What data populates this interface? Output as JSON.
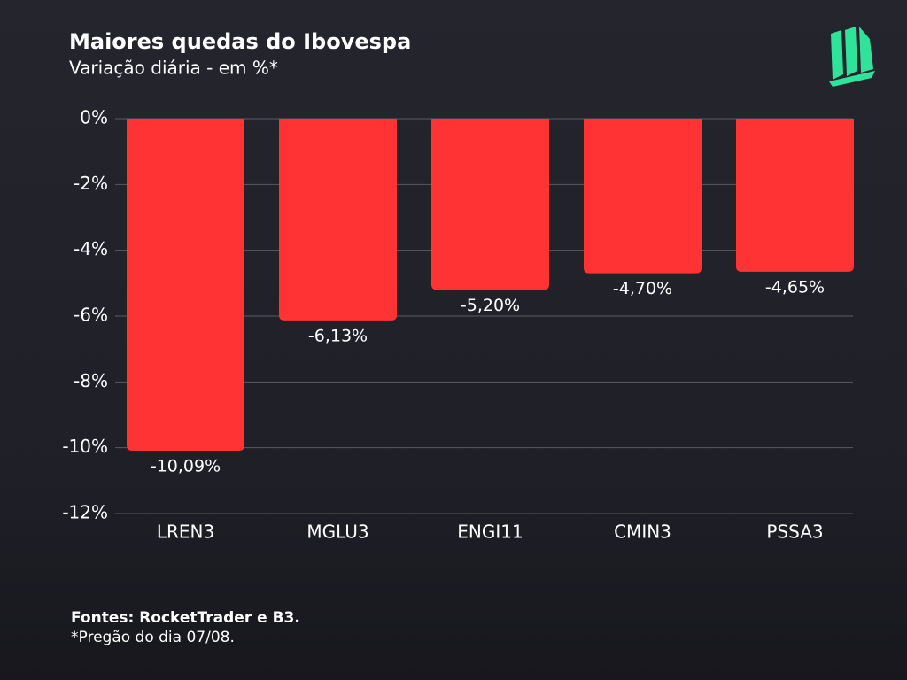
{
  "chart_data": {
    "type": "bar",
    "title": "Maiores quedas do Ibovespa",
    "subtitle": "Variação diária - em %*",
    "categories": [
      "LREN3",
      "MGLU3",
      "ENGI11",
      "CMIN3",
      "PSSA3"
    ],
    "values": [
      -10.09,
      -6.13,
      -5.2,
      -4.7,
      -4.65
    ],
    "value_labels": [
      "-10,09%",
      "-6,13%",
      "-5,20%",
      "-4,70%",
      "-4,65%"
    ],
    "color": "#ff3333",
    "ylim": [
      -12,
      0
    ],
    "yticks": [
      {
        "value": 0,
        "label": "0%"
      },
      {
        "value": -2,
        "label": "-2%"
      },
      {
        "value": -4,
        "label": "-4%"
      },
      {
        "value": -6,
        "label": "-6%"
      },
      {
        "value": -8,
        "label": "-8%"
      },
      {
        "value": -10,
        "label": "-10%"
      },
      {
        "value": -12,
        "label": "-12%"
      }
    ],
    "grid": true
  },
  "footer": {
    "source": "Fontes: RocketTrader e B3.",
    "note": "*Pregão do dia 07/08."
  }
}
